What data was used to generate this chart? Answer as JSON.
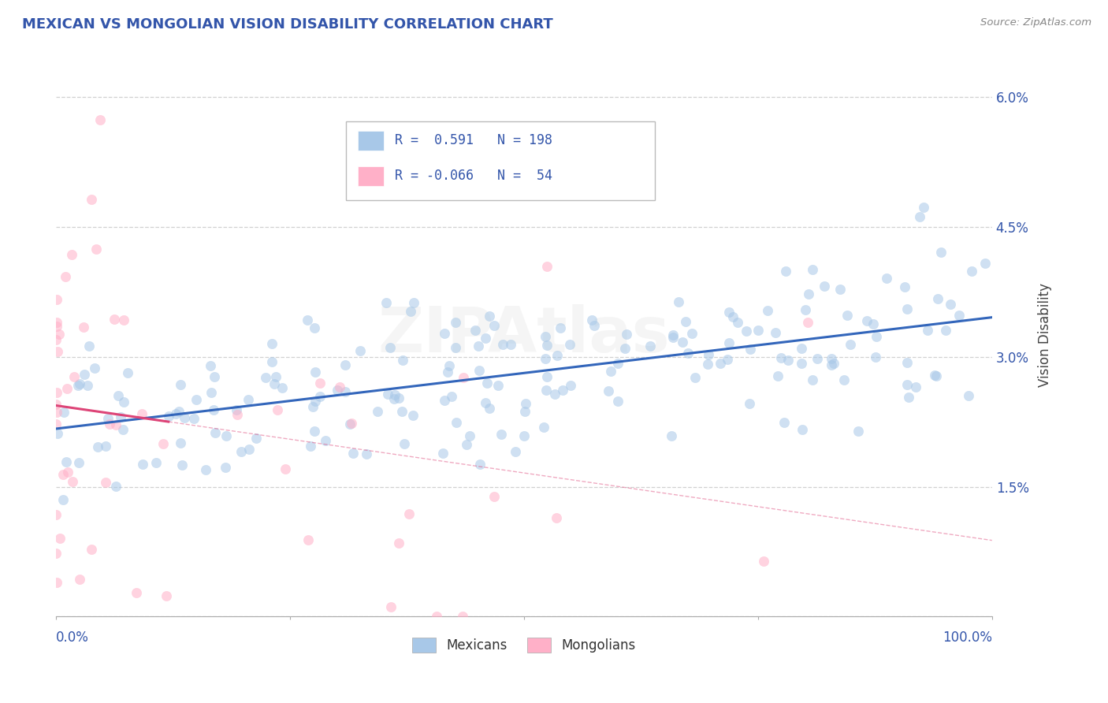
{
  "title": "MEXICAN VS MONGOLIAN VISION DISABILITY CORRELATION CHART",
  "source": "Source: ZipAtlas.com",
  "ylabel": "Vision Disability",
  "xlim": [
    0,
    1.0
  ],
  "ylim": [
    0,
    0.065
  ],
  "yticks": [
    0.0,
    0.015,
    0.03,
    0.045,
    0.06
  ],
  "ytick_labels": [
    "",
    "1.5%",
    "3.0%",
    "4.5%",
    "6.0%"
  ],
  "xtick_left_label": "0.0%",
  "xtick_right_label": "100.0%",
  "mexican_R": 0.591,
  "mexican_N": 198,
  "mongolian_R": -0.066,
  "mongolian_N": 54,
  "blue_scatter_color": "#A8C8E8",
  "pink_scatter_color": "#FFB0C8",
  "blue_line_color": "#3366BB",
  "pink_line_color": "#DD4477",
  "title_color": "#3355AA",
  "source_color": "#888888",
  "title_fontsize": 13,
  "legend_label_mexican": "Mexicans",
  "legend_label_mongolian": "Mongolians",
  "watermark": "ZIPAtlas",
  "background_color": "#FFFFFF",
  "grid_color": "#CCCCCC",
  "blue_mex_line_start_y": 0.026,
  "blue_mex_line_end_y": 0.032,
  "pink_mon_line_start_y": 0.026,
  "pink_mon_line_end_y": 0.019,
  "pink_mon_line_solid_end_x": 0.12
}
